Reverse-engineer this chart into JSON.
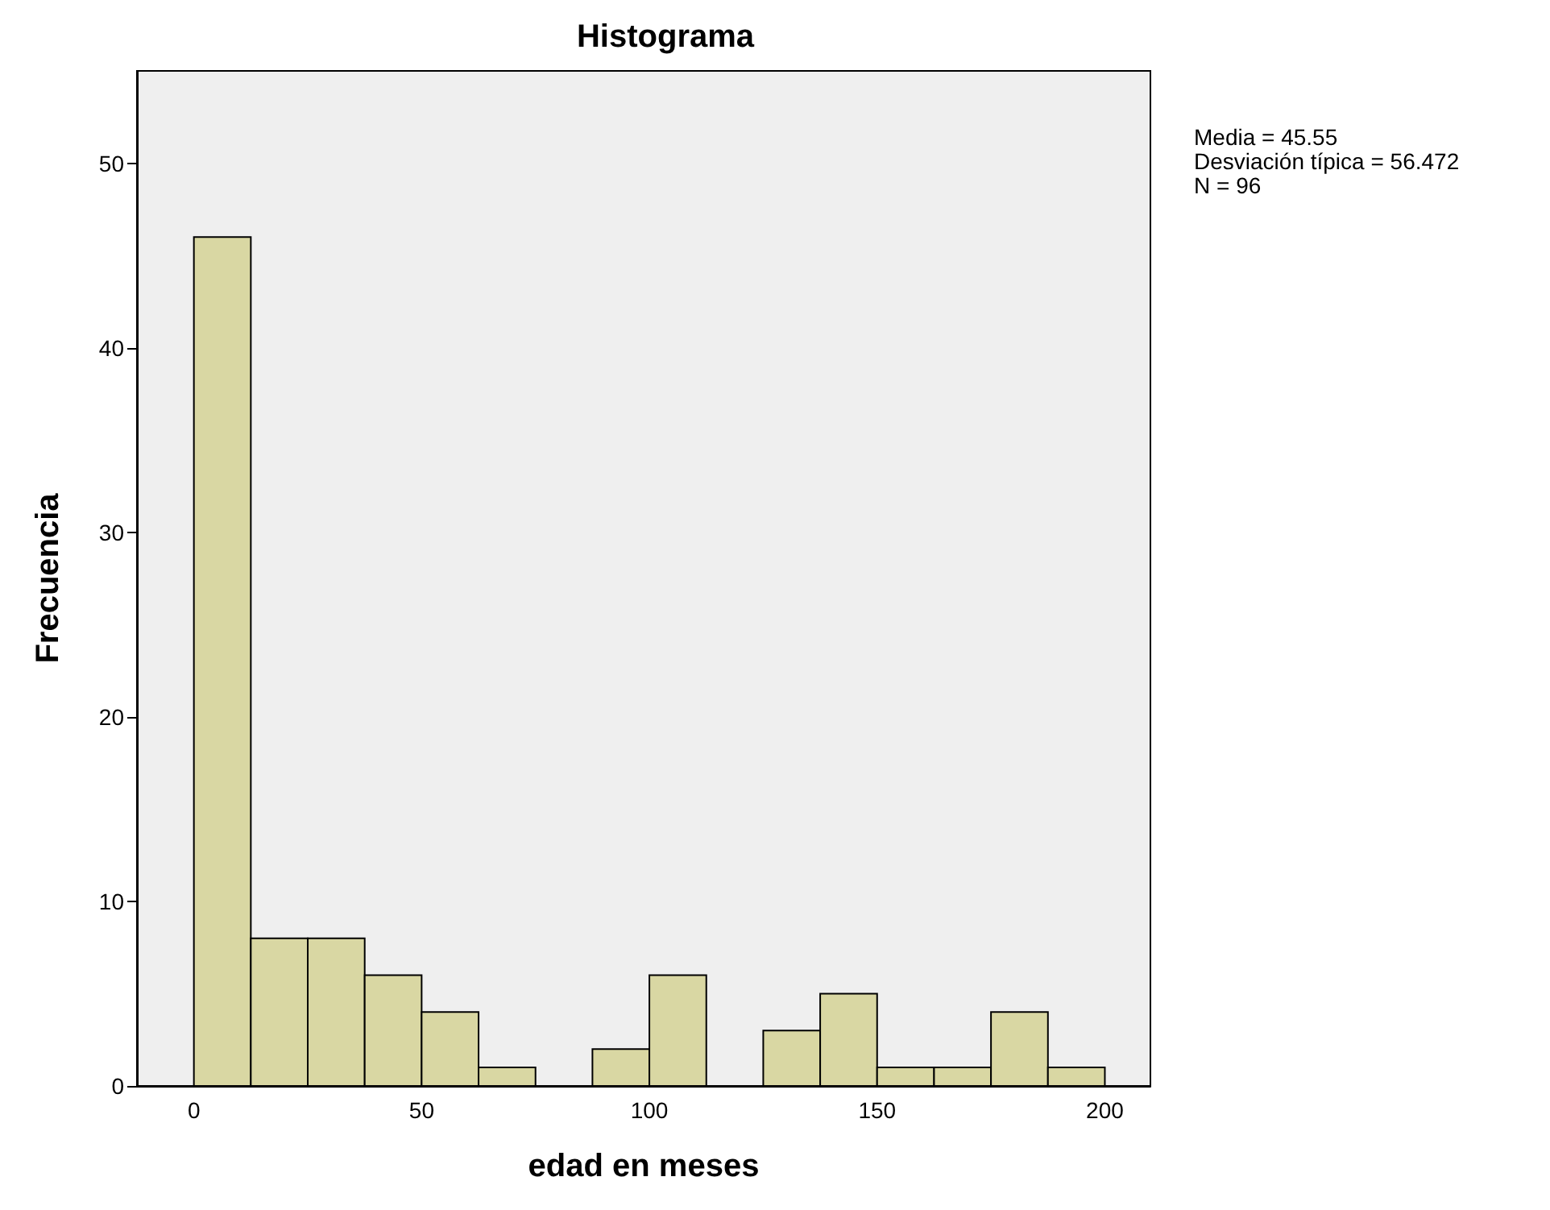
{
  "chart_data": {
    "type": "histogram",
    "title": "Histograma",
    "xlabel": "edad en meses",
    "ylabel": "Frecuencia",
    "bins": [
      0,
      12.5,
      25,
      37.5,
      50,
      62.5,
      75,
      87.5,
      100,
      112.5,
      125,
      137.5,
      150,
      162.5,
      175,
      187.5,
      200
    ],
    "values": [
      46,
      8,
      8,
      6,
      4,
      1,
      0,
      2,
      6,
      0,
      3,
      5,
      1,
      1,
      4,
      1
    ],
    "color": "#d9d7a3",
    "xlim": [
      -12.5,
      210
    ],
    "xticks": [
      0,
      50,
      100,
      150,
      200
    ],
    "ylim": [
      0,
      55
    ],
    "yticks": [
      0,
      10,
      20,
      30,
      40,
      50
    ],
    "grid": false,
    "annotations": [
      "Media = 45.55",
      "Desviación típica = 56.472",
      "N = 96"
    ]
  }
}
